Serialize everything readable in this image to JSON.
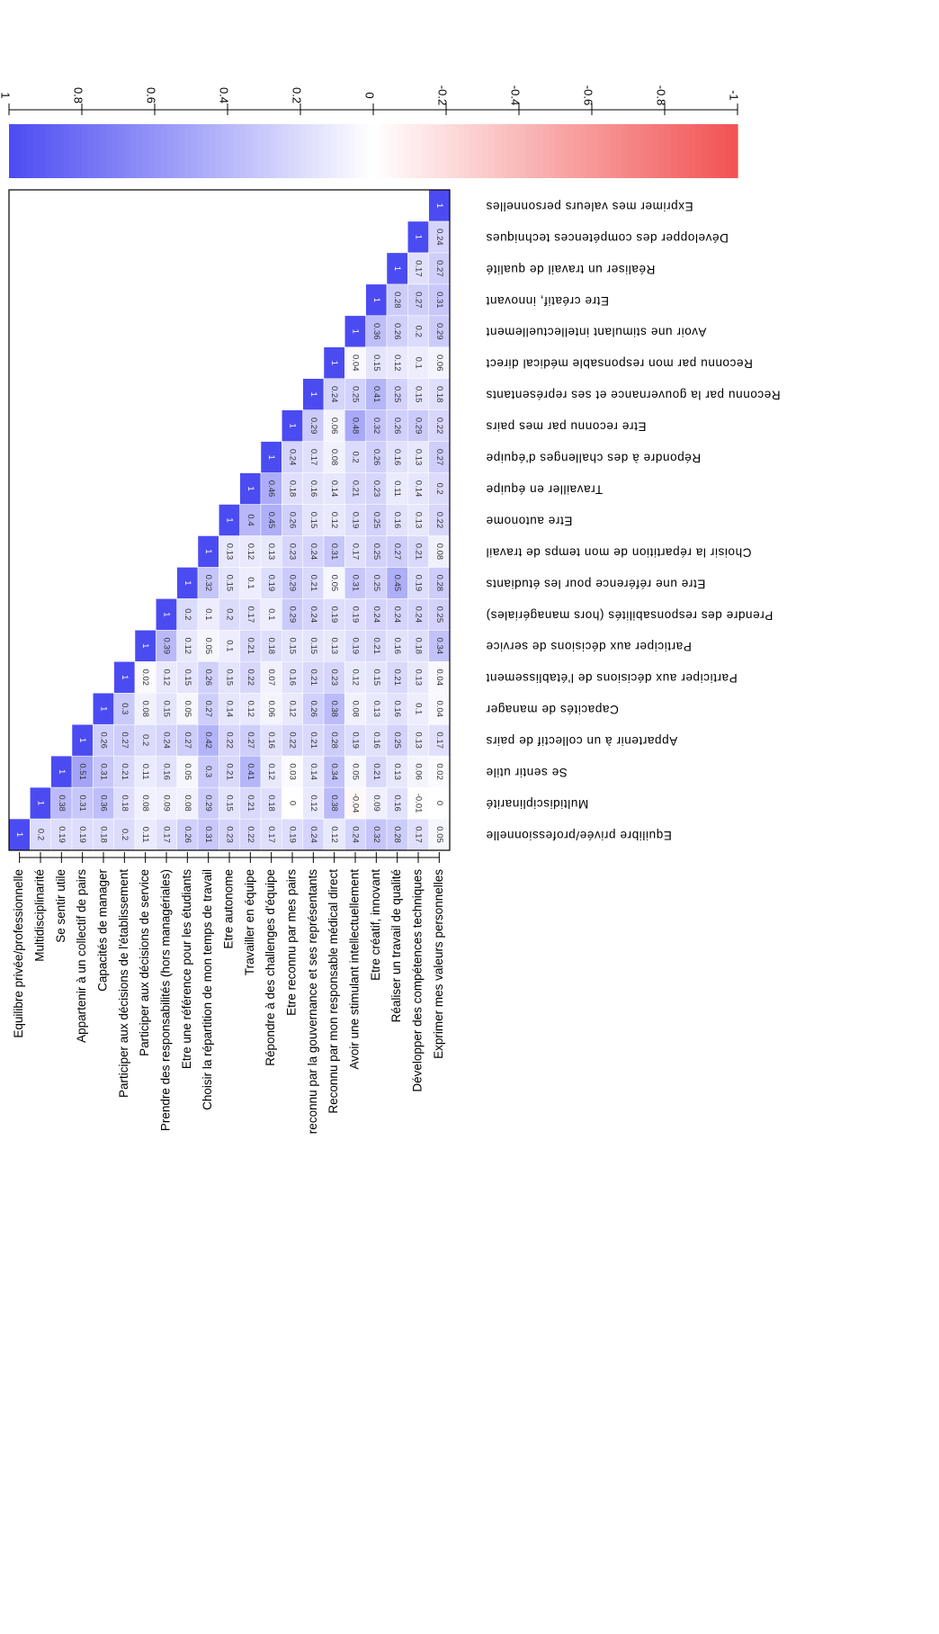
{
  "chart_data": {
    "type": "heatmap",
    "title": "",
    "xlabel": "",
    "ylabel": "",
    "variables": [
      "Equilibre privée/professionnelle",
      "Multidisciplinarité",
      "Se sentir utile",
      "Appartenir à un collectif de pairs",
      "Capacités de manager",
      "Participer aux décisions de l'établissement",
      "Participer aux décisions de service",
      "Prendre des responsabilités (hors managériales)",
      "Etre une référence pour les étudiants",
      "Choisir la répartition de mon temps de travail",
      "Etre autonome",
      "Travailler en équipe",
      "Répondre à des challenges d'équipe",
      "Etre reconnu par mes pairs",
      "Reconnu par la gouvernance et ses représentants",
      "Reconnu par mon responsable médical direct",
      "Avoir une stimulant intellectuellement",
      "Etre créatif, innovant",
      "Réaliser un travail de qualité",
      "Développer des compétences techniques",
      "Exprimer mes valeurs personnelles"
    ],
    "row_labels": [
      "Equilibre privée/professionnelle",
      "Multidisciplinarité",
      "Se sentir utile",
      "Appartenir à un collectif de pairs",
      "Capacités de manager",
      "Participer aux décisions de l'établissement",
      "Participer aux décisions de service",
      "Prendre des responsabilités (hors managériales)",
      "Etre une référence pour les étudiants",
      "Choisir la répartition de mon temps de travail",
      "Etre autonome",
      "Travailler en équipe",
      "Répondre à des challenges d'équipe",
      "Etre reconnu par mes pairs",
      "reconnu par la gouvernance et ses représentants",
      "Reconnu par mon responsable médical direct",
      "Avoir une stimulant intellectuellement",
      "Etre créatif, innovant",
      "Réaliser un travail de qualité",
      "Développer des compétences techniques",
      "Exprimer mes valeurs personnelles"
    ],
    "col_labels": [
      "Equilibre privée/professionnelle",
      "Multidisciplinarité",
      "Se sentir utile",
      "Appartenir à un collectif de pairs",
      "Capacités de manager",
      "Participer aux décisions de l'établissement",
      "Participer aux décisions de service",
      "Prendre des responsabilités (hors managériales)",
      "Etre une référence pour les étudiants",
      "Choisir la répartition de mon temps de travail",
      "Etre autonome",
      "Travailler en équipe",
      "Répondre à des challenges d'équipe",
      "Etre reconnu par mes pairs",
      "Reconnu par la gouvernance et ses représentants",
      "Reconnu par mon responsable médical direct",
      "Avoir une stimulant intellectuellement",
      "Etre créatif, innovant",
      "Réaliser un travail de qualité",
      "Développer des compétences techniques",
      "Exprimer mes valeurs personnelles"
    ],
    "lower_triangle": [
      [
        1
      ],
      [
        0.2,
        1
      ],
      [
        0.19,
        0.38,
        1
      ],
      [
        0.19,
        0.31,
        0.51,
        1
      ],
      [
        0.18,
        0.36,
        0.31,
        0.26,
        1
      ],
      [
        0.2,
        0.18,
        0.21,
        0.27,
        0.3,
        1
      ],
      [
        0.11,
        0.08,
        0.11,
        0.2,
        0.08,
        0.02,
        1
      ],
      [
        0.17,
        0.09,
        0.16,
        0.24,
        0.15,
        0.12,
        0.39,
        1
      ],
      [
        0.26,
        0.08,
        0.05,
        0.27,
        0.05,
        0.15,
        0.12,
        0.2,
        1
      ],
      [
        0.31,
        0.29,
        0.3,
        0.42,
        0.27,
        0.26,
        0.05,
        0.1,
        0.32,
        1
      ],
      [
        0.23,
        0.15,
        0.21,
        0.22,
        0.14,
        0.15,
        0.1,
        0.2,
        0.15,
        0.13,
        1
      ],
      [
        0.22,
        0.21,
        0.41,
        0.27,
        0.12,
        0.22,
        0.21,
        0.17,
        0.1,
        0.12,
        0.4,
        1
      ],
      [
        0.17,
        0.18,
        0.12,
        0.16,
        0.06,
        0.07,
        0.18,
        0.1,
        0.19,
        0.13,
        0.45,
        0.46,
        1
      ],
      [
        0.19,
        0,
        0.03,
        0.22,
        0.12,
        0.16,
        0.15,
        0.29,
        0.29,
        0.23,
        0.26,
        0.18,
        0.24,
        1
      ],
      [
        0.24,
        0.12,
        0.14,
        0.21,
        0.26,
        0.21,
        0.15,
        0.24,
        0.21,
        0.24,
        0.15,
        0.16,
        0.17,
        0.29,
        1
      ],
      [
        0.12,
        0.38,
        0.34,
        0.28,
        0.38,
        0.23,
        0.13,
        0.19,
        0.05,
        0.31,
        0.12,
        0.14,
        0.08,
        0.06,
        0.24,
        1
      ],
      [
        0.24,
        -0.04,
        0.05,
        0.19,
        0.08,
        0.12,
        0.19,
        0.19,
        0.31,
        0.17,
        0.19,
        0.21,
        0.2,
        0.48,
        0.25,
        0.04,
        1
      ],
      [
        0.32,
        0.09,
        0.21,
        0.16,
        0.13,
        0.15,
        0.21,
        0.24,
        0.25,
        0.25,
        0.25,
        0.23,
        0.26,
        0.32,
        0.41,
        0.15,
        0.36,
        1
      ],
      [
        0.28,
        0.16,
        0.13,
        0.25,
        0.16,
        0.21,
        0.16,
        0.24,
        0.45,
        0.27,
        0.16,
        0.11,
        0.16,
        0.26,
        0.25,
        0.12,
        0.26,
        0.28,
        1
      ],
      [
        0.17,
        -0.01,
        0.06,
        0.13,
        0.1,
        0.13,
        0.18,
        0.24,
        0.19,
        0.21,
        0.13,
        0.14,
        0.13,
        0.29,
        0.15,
        0.1,
        0.2,
        0.27,
        0.17,
        1
      ],
      [
        0.05,
        0,
        0.02,
        0.17,
        0.04,
        0.04,
        0.34,
        0.25,
        0.28,
        0.08,
        0.22,
        0.2,
        0.27,
        0.22,
        0.18,
        0.06,
        0.29,
        0.31,
        0.27,
        0.24,
        1
      ]
    ],
    "colorbar": {
      "ticks": [
        "1",
        "0.8",
        "0.6",
        "0.4",
        "0.2",
        "0",
        "-0.2",
        "-0.4",
        "-0.6",
        "-0.8",
        "-1"
      ],
      "range": [
        -1,
        1
      ],
      "color_positive": "#4b4bf2",
      "color_zero": "#ffffff",
      "color_negative": "#f25252"
    }
  }
}
